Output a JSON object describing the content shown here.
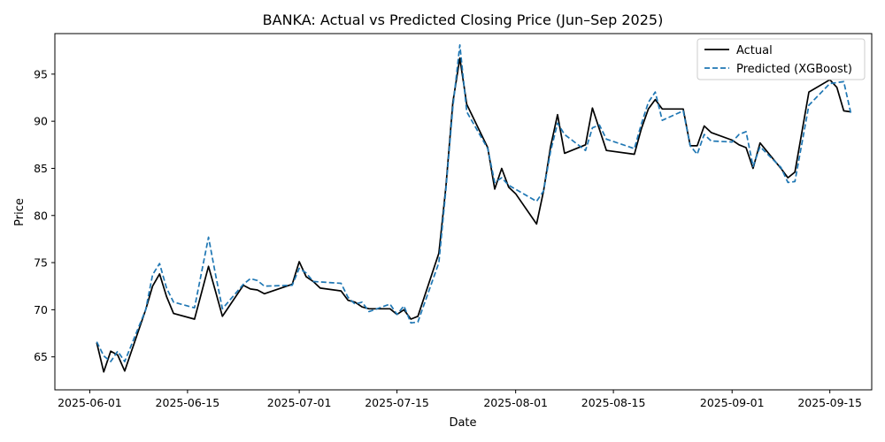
{
  "chart_data": {
    "type": "line",
    "title": "BANKA: Actual vs Predicted Closing Price (Jun–Sep 2025)",
    "xlabel": "Date",
    "ylabel": "Price",
    "xlim": [
      "2025-05-27",
      "2025-09-21"
    ],
    "ylim": [
      61.5,
      99.3
    ],
    "xticks": [
      "2025-06-01",
      "2025-06-15",
      "2025-07-01",
      "2025-07-15",
      "2025-08-01",
      "2025-08-15",
      "2025-09-01",
      "2025-09-15"
    ],
    "yticks": [
      65,
      70,
      75,
      80,
      85,
      90,
      95
    ],
    "grid": false,
    "legend_position": "top-right",
    "series": [
      {
        "name": "Actual",
        "color": "#000000",
        "style": "solid",
        "points": [
          [
            "2025-06-02",
            66.5
          ],
          [
            "2025-06-03",
            63.4
          ],
          [
            "2025-06-04",
            65.6
          ],
          [
            "2025-06-05",
            65.2
          ],
          [
            "2025-06-06",
            63.5
          ],
          [
            "2025-06-09",
            70.0
          ],
          [
            "2025-06-10",
            72.5
          ],
          [
            "2025-06-11",
            73.8
          ],
          [
            "2025-06-12",
            71.4
          ],
          [
            "2025-06-13",
            69.6
          ],
          [
            "2025-06-16",
            69.0
          ],
          [
            "2025-06-18",
            74.6
          ],
          [
            "2025-06-19",
            72.0
          ],
          [
            "2025-06-20",
            69.3
          ],
          [
            "2025-06-23",
            72.6
          ],
          [
            "2025-06-24",
            72.2
          ],
          [
            "2025-06-25",
            72.1
          ],
          [
            "2025-06-26",
            71.7
          ],
          [
            "2025-06-30",
            72.7
          ],
          [
            "2025-07-01",
            75.1
          ],
          [
            "2025-07-02",
            73.5
          ],
          [
            "2025-07-03",
            73.0
          ],
          [
            "2025-07-04",
            72.3
          ],
          [
            "2025-07-07",
            72.0
          ],
          [
            "2025-07-08",
            71.0
          ],
          [
            "2025-07-09",
            70.8
          ],
          [
            "2025-07-10",
            70.3
          ],
          [
            "2025-07-11",
            70.1
          ],
          [
            "2025-07-14",
            70.1
          ],
          [
            "2025-07-15",
            69.5
          ],
          [
            "2025-07-16",
            70.0
          ],
          [
            "2025-07-17",
            69.0
          ],
          [
            "2025-07-18",
            69.3
          ],
          [
            "2025-07-21",
            76.0
          ],
          [
            "2025-07-22",
            83.0
          ],
          [
            "2025-07-23",
            92.0
          ],
          [
            "2025-07-24",
            96.7
          ],
          [
            "2025-07-25",
            91.8
          ],
          [
            "2025-07-28",
            87.2
          ],
          [
            "2025-07-29",
            82.8
          ],
          [
            "2025-07-30",
            85.0
          ],
          [
            "2025-07-31",
            83.0
          ],
          [
            "2025-08-01",
            82.3
          ],
          [
            "2025-08-04",
            79.1
          ],
          [
            "2025-08-05",
            82.6
          ],
          [
            "2025-08-06",
            87.3
          ],
          [
            "2025-08-07",
            90.7
          ],
          [
            "2025-08-08",
            86.6
          ],
          [
            "2025-08-11",
            87.5
          ],
          [
            "2025-08-12",
            91.4
          ],
          [
            "2025-08-14",
            86.9
          ],
          [
            "2025-08-18",
            86.5
          ],
          [
            "2025-08-19",
            89.2
          ],
          [
            "2025-08-20",
            91.3
          ],
          [
            "2025-08-21",
            92.3
          ],
          [
            "2025-08-22",
            91.3
          ],
          [
            "2025-08-25",
            91.3
          ],
          [
            "2025-08-26",
            87.4
          ],
          [
            "2025-08-27",
            87.4
          ],
          [
            "2025-08-28",
            89.5
          ],
          [
            "2025-08-29",
            88.8
          ],
          [
            "2025-09-01",
            88.0
          ],
          [
            "2025-09-02",
            87.5
          ],
          [
            "2025-09-03",
            87.2
          ],
          [
            "2025-09-04",
            85.0
          ],
          [
            "2025-09-05",
            87.7
          ],
          [
            "2025-09-08",
            85.0
          ],
          [
            "2025-09-09",
            84.0
          ],
          [
            "2025-09-10",
            84.6
          ],
          [
            "2025-09-12",
            93.1
          ],
          [
            "2025-09-15",
            94.4
          ],
          [
            "2025-09-16",
            93.6
          ],
          [
            "2025-09-17",
            91.1
          ],
          [
            "2025-09-18",
            91.0
          ]
        ]
      },
      {
        "name": "Predicted (XGBoost)",
        "color": "#1f77b4",
        "style": "dashed",
        "points": [
          [
            "2025-06-02",
            66.6
          ],
          [
            "2025-06-03",
            65.1
          ],
          [
            "2025-06-04",
            64.5
          ],
          [
            "2025-06-05",
            65.6
          ],
          [
            "2025-06-06",
            64.5
          ],
          [
            "2025-06-09",
            70.0
          ],
          [
            "2025-06-10",
            73.7
          ],
          [
            "2025-06-11",
            74.9
          ],
          [
            "2025-06-12",
            72.3
          ],
          [
            "2025-06-13",
            70.8
          ],
          [
            "2025-06-16",
            70.2
          ],
          [
            "2025-06-18",
            77.7
          ],
          [
            "2025-06-19",
            73.8
          ],
          [
            "2025-06-20",
            70.1
          ],
          [
            "2025-06-23",
            72.7
          ],
          [
            "2025-06-24",
            73.3
          ],
          [
            "2025-06-25",
            73.1
          ],
          [
            "2025-06-26",
            72.5
          ],
          [
            "2025-06-30",
            72.6
          ],
          [
            "2025-07-01",
            74.4
          ],
          [
            "2025-07-02",
            73.9
          ],
          [
            "2025-07-03",
            73.0
          ],
          [
            "2025-07-07",
            72.8
          ],
          [
            "2025-07-08",
            71.3
          ],
          [
            "2025-07-09",
            70.6
          ],
          [
            "2025-07-10",
            70.8
          ],
          [
            "2025-07-11",
            69.8
          ],
          [
            "2025-07-14",
            70.6
          ],
          [
            "2025-07-15",
            69.5
          ],
          [
            "2025-07-16",
            70.4
          ],
          [
            "2025-07-17",
            68.6
          ],
          [
            "2025-07-18",
            68.7
          ],
          [
            "2025-07-21",
            75.0
          ],
          [
            "2025-07-22",
            82.7
          ],
          [
            "2025-07-23",
            91.5
          ],
          [
            "2025-07-24",
            98.1
          ],
          [
            "2025-07-25",
            91.0
          ],
          [
            "2025-07-28",
            87.1
          ],
          [
            "2025-07-29",
            83.5
          ],
          [
            "2025-07-30",
            84.0
          ],
          [
            "2025-07-31",
            83.2
          ],
          [
            "2025-08-04",
            81.5
          ],
          [
            "2025-08-05",
            82.6
          ],
          [
            "2025-08-06",
            86.8
          ],
          [
            "2025-08-07",
            89.8
          ],
          [
            "2025-08-08",
            88.6
          ],
          [
            "2025-08-11",
            86.9
          ],
          [
            "2025-08-12",
            89.3
          ],
          [
            "2025-08-13",
            89.6
          ],
          [
            "2025-08-14",
            88.1
          ],
          [
            "2025-08-18",
            87.1
          ],
          [
            "2025-08-19",
            89.7
          ],
          [
            "2025-08-20",
            92.0
          ],
          [
            "2025-08-21",
            93.1
          ],
          [
            "2025-08-22",
            90.1
          ],
          [
            "2025-08-25",
            91.1
          ],
          [
            "2025-08-26",
            87.4
          ],
          [
            "2025-08-27",
            86.5
          ],
          [
            "2025-08-28",
            88.6
          ],
          [
            "2025-08-29",
            87.9
          ],
          [
            "2025-09-01",
            87.8
          ],
          [
            "2025-09-02",
            88.6
          ],
          [
            "2025-09-03",
            88.9
          ],
          [
            "2025-09-04",
            85.2
          ],
          [
            "2025-09-05",
            87.3
          ],
          [
            "2025-09-08",
            85.1
          ],
          [
            "2025-09-09",
            83.5
          ],
          [
            "2025-09-10",
            83.6
          ],
          [
            "2025-09-12",
            91.7
          ],
          [
            "2025-09-15",
            94.0
          ],
          [
            "2025-09-16",
            94.1
          ],
          [
            "2025-09-17",
            94.2
          ],
          [
            "2025-09-18",
            90.9
          ]
        ]
      }
    ]
  }
}
